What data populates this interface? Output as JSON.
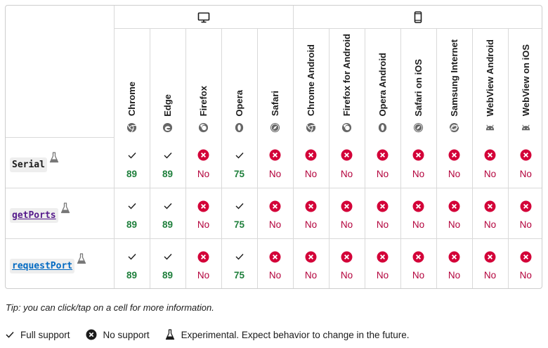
{
  "platforms": [
    "desktop",
    "mobile"
  ],
  "browsers": [
    {
      "name": "Chrome",
      "icon": "chrome-icon"
    },
    {
      "name": "Edge",
      "icon": "edge-icon"
    },
    {
      "name": "Firefox",
      "icon": "firefox-icon"
    },
    {
      "name": "Opera",
      "icon": "opera-icon"
    },
    {
      "name": "Safari",
      "icon": "safari-icon"
    },
    {
      "name": "Chrome Android",
      "icon": "chrome-icon"
    },
    {
      "name": "Firefox for Android",
      "icon": "firefox-icon"
    },
    {
      "name": "Opera Android",
      "icon": "opera-icon"
    },
    {
      "name": "Safari on iOS",
      "icon": "safari-icon"
    },
    {
      "name": "Samsung Internet",
      "icon": "samsung-internet-icon"
    },
    {
      "name": "WebView Android",
      "icon": "android-icon"
    },
    {
      "name": "WebView on iOS",
      "icon": "android-icon"
    }
  ],
  "features": [
    {
      "name": "Serial",
      "link": false,
      "experimental": true,
      "support": [
        "89",
        "89",
        "No",
        "75",
        "No",
        "No",
        "No",
        "No",
        "No",
        "No",
        "No",
        "No"
      ]
    },
    {
      "name": "getPorts",
      "link": true,
      "experimental": true,
      "support": [
        "89",
        "89",
        "No",
        "75",
        "No",
        "No",
        "No",
        "No",
        "No",
        "No",
        "No",
        "No"
      ]
    },
    {
      "name": "requestPort",
      "link": true,
      "experimental": true,
      "support": [
        "89",
        "89",
        "No",
        "75",
        "No",
        "No",
        "No",
        "No",
        "No",
        "No",
        "No",
        "No"
      ]
    }
  ],
  "tip": "Tip: you can click/tap on a cell for more information.",
  "legend": {
    "full_support": "Full support",
    "no_support": "No support",
    "experimental": "Experimental. Expect behavior to change in the future."
  },
  "colors": {
    "yes": "#1e7f3b",
    "no": "#b3003b",
    "no_icon": "#d30038"
  }
}
